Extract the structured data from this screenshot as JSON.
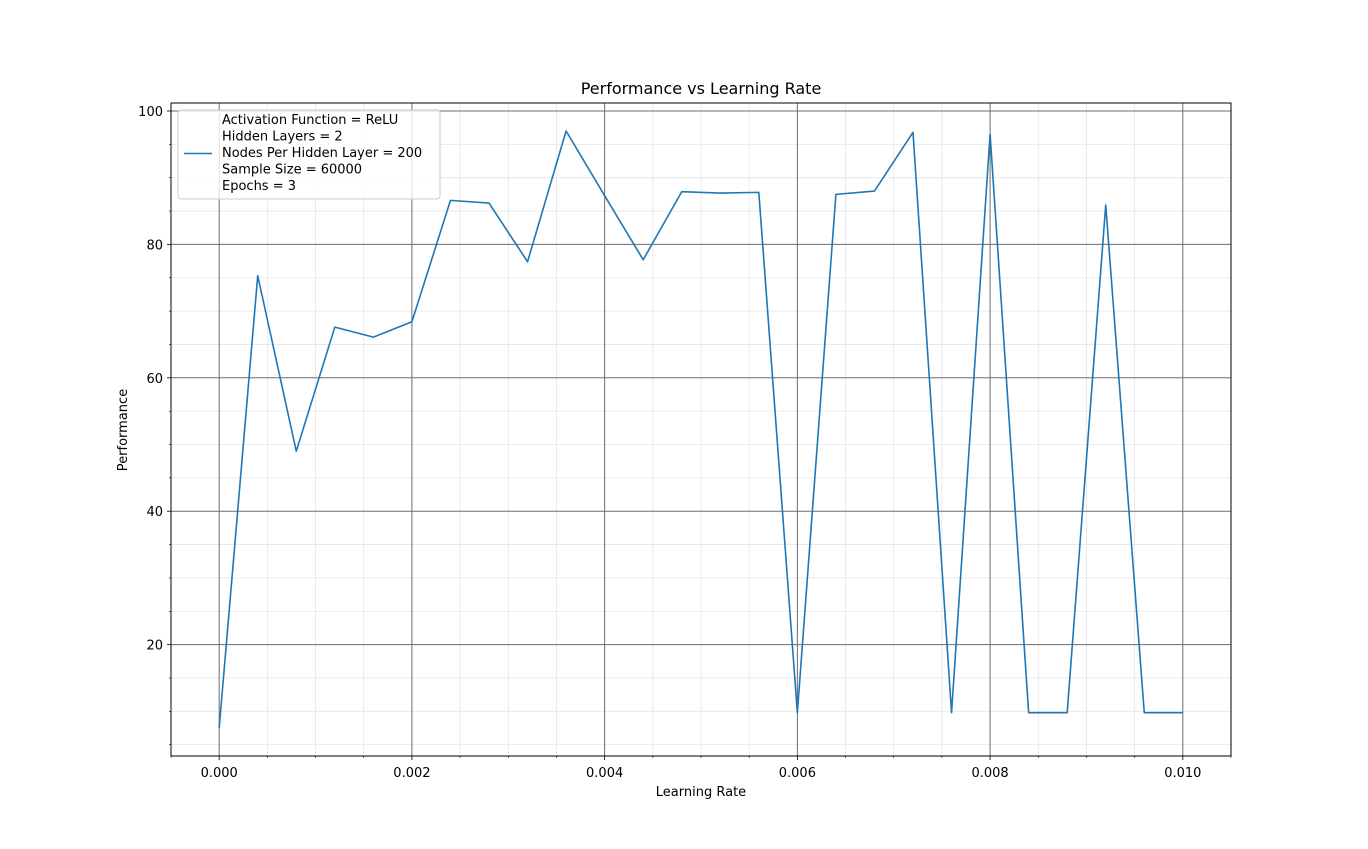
{
  "chart_data": {
    "type": "line",
    "title": "Performance vs Learning Rate",
    "xlabel": "Learning Rate",
    "ylabel": "Performance",
    "xlim": [
      -0.0005,
      0.0105
    ],
    "ylim": [
      3.3,
      101.2
    ],
    "xticks": [
      0.0,
      0.002,
      0.004,
      0.006,
      0.008,
      0.01
    ],
    "xtick_labels": [
      "0.000",
      "0.002",
      "0.004",
      "0.006",
      "0.008",
      "0.010"
    ],
    "yticks": [
      20,
      40,
      60,
      80,
      100
    ],
    "ytick_labels": [
      "20",
      "40",
      "60",
      "80",
      "100"
    ],
    "x_minor_step": 0.0005,
    "y_minor_step": 5,
    "grid": true,
    "legend_position": "top-left",
    "series": [
      {
        "name": "Activation Function = ReLU\nHidden Layers = 2\nNodes Per Hidden Layer = 200\nSample Size = 60000\nEpochs = 3",
        "color": "#1f77b4",
        "x": [
          0.0,
          0.0004,
          0.0008,
          0.0012,
          0.0016,
          0.002,
          0.0024,
          0.0028,
          0.0032,
          0.0036,
          0.004,
          0.0044,
          0.0048,
          0.0052,
          0.0056,
          0.006,
          0.0064,
          0.0068,
          0.0072,
          0.0076,
          0.008,
          0.0084,
          0.0088,
          0.0092,
          0.0096,
          0.01
        ],
        "values": [
          7.5,
          75.3,
          49.0,
          67.6,
          66.1,
          68.4,
          86.6,
          86.2,
          77.4,
          97.0,
          87.3,
          77.7,
          87.9,
          87.7,
          87.8,
          9.8,
          87.5,
          88.0,
          96.8,
          9.8,
          96.5,
          9.8,
          9.8,
          85.9,
          9.8,
          9.8
        ]
      }
    ]
  }
}
